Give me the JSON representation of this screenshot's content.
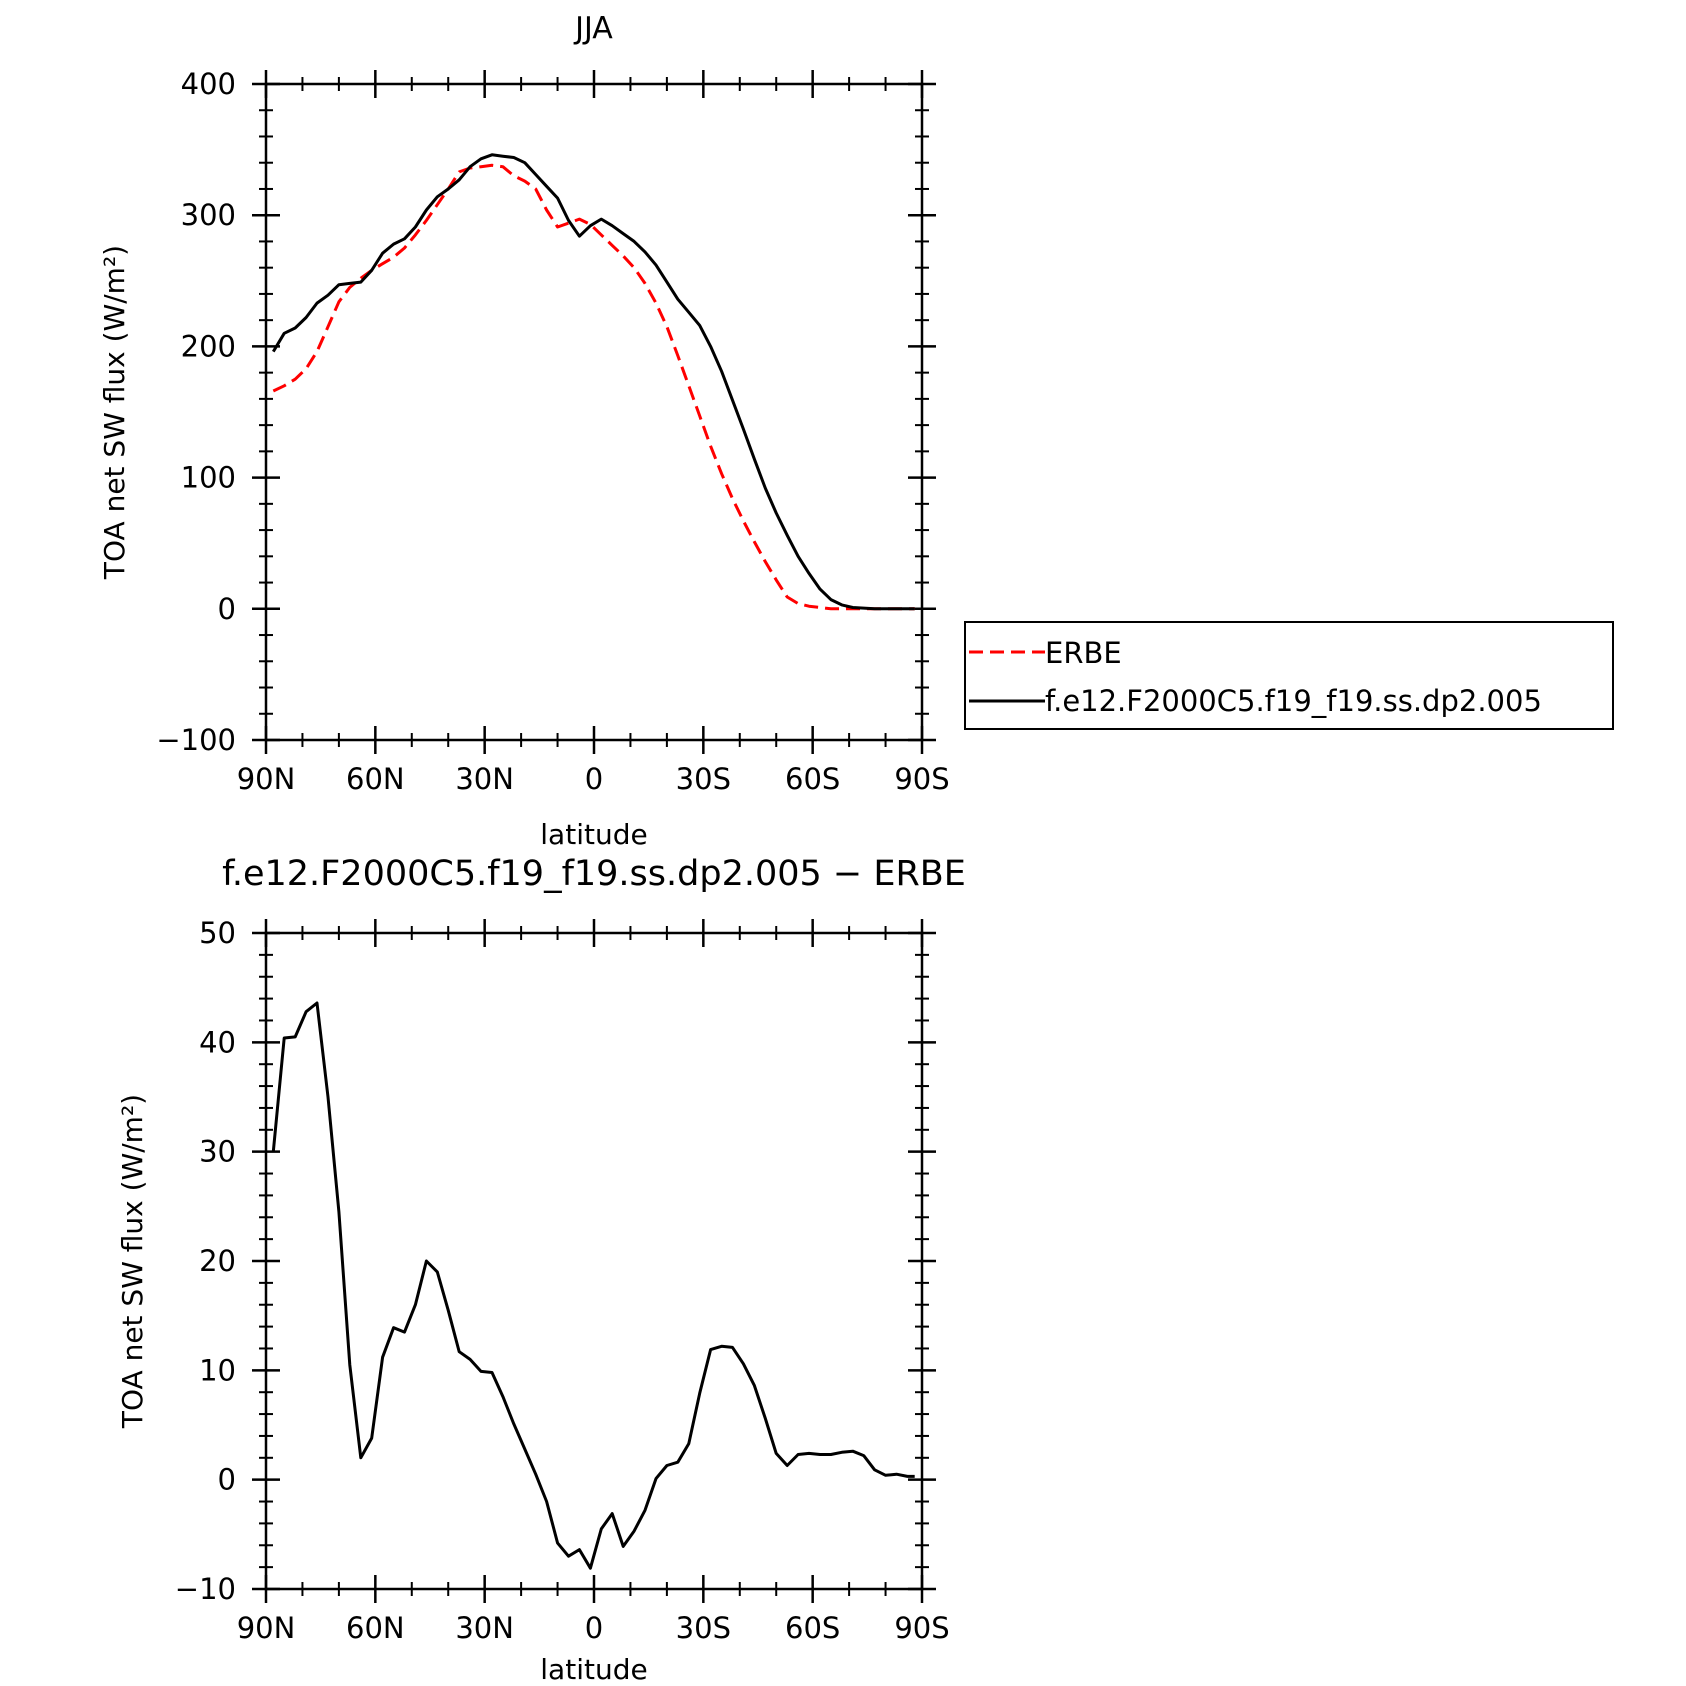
{
  "figure": {
    "background": "#ffffff",
    "axis_color": "#000000"
  },
  "chart_data": [
    {
      "type": "line",
      "title": "JJA",
      "xlabel": "latitude",
      "ylabel": "TOA net SW flux (W/m²)",
      "xlim": [
        -90,
        90
      ],
      "ylim": [
        -100,
        400
      ],
      "x_ticks": [
        -90,
        -60,
        -30,
        0,
        30,
        60,
        90
      ],
      "x_tick_labels": [
        "90N",
        "60N",
        "30N",
        "0",
        "30S",
        "60S",
        "90S"
      ],
      "y_ticks": [
        -100,
        0,
        100,
        200,
        300,
        400
      ],
      "y_tick_labels": [
        "−100",
        "0",
        "100",
        "200",
        "300",
        "400"
      ],
      "legend": {
        "placement": "right",
        "entries": [
          "ERBE",
          "f.e12.F2000C5.f19_f19.ss.dp2.005"
        ]
      },
      "series": [
        {
          "name": "ERBE",
          "color": "#ff0000",
          "dash": "dashed",
          "x": [
            -88,
            -85,
            -82,
            -79,
            -76,
            -73,
            -70,
            -67,
            -64,
            -61,
            -58,
            -55,
            -52,
            -49,
            -46,
            -43,
            -40,
            -37,
            -34,
            -31,
            -28,
            -25,
            -22,
            -19,
            -16,
            -13,
            -10,
            -7,
            -4,
            -1,
            2,
            5,
            8,
            11,
            14,
            17,
            20,
            23,
            26,
            29,
            32,
            35,
            38,
            41,
            44,
            47,
            50,
            53,
            56,
            59,
            62,
            65,
            68,
            71,
            74,
            77,
            80,
            83,
            86,
            88
          ],
          "y": [
            166,
            170,
            175,
            183,
            196,
            215,
            234,
            245,
            252,
            258,
            263,
            268,
            275,
            285,
            296,
            308,
            320,
            333,
            336,
            337,
            338,
            337,
            330,
            326,
            320,
            304,
            291,
            294,
            297,
            293,
            285,
            277,
            269,
            260,
            248,
            233,
            215,
            193,
            170,
            147,
            124,
            103,
            84,
            67,
            51,
            36,
            22,
            9,
            4,
            2,
            1,
            0,
            0,
            0,
            0,
            0,
            0,
            0,
            0,
            0
          ]
        },
        {
          "name": "f.e12.F2000C5.f19_f19.ss.dp2.005",
          "color": "#000000",
          "dash": "solid",
          "x": [
            -88,
            -85,
            -82,
            -79,
            -76,
            -73,
            -70,
            -67,
            -64,
            -61,
            -58,
            -55,
            -52,
            -49,
            -46,
            -43,
            -40,
            -37,
            -34,
            -31,
            -28,
            -25,
            -22,
            -19,
            -16,
            -13,
            -10,
            -7,
            -4,
            -1,
            2,
            5,
            8,
            11,
            14,
            17,
            20,
            23,
            26,
            29,
            32,
            35,
            38,
            41,
            44,
            47,
            50,
            53,
            56,
            59,
            62,
            65,
            68,
            71,
            74,
            77,
            80,
            83,
            86,
            88
          ],
          "y": [
            196,
            210,
            214,
            222,
            233,
            239,
            247,
            248,
            249,
            258,
            271,
            278,
            282,
            291,
            304,
            314,
            320,
            327,
            337,
            343,
            346,
            345,
            344,
            340,
            331,
            322,
            313,
            296,
            284,
            292,
            297,
            292,
            286,
            280,
            272,
            262,
            249,
            236,
            226,
            216,
            200,
            181,
            159,
            137,
            114,
            92,
            73,
            56,
            40,
            27,
            15,
            7,
            3,
            1,
            0.5,
            0,
            0,
            0,
            0,
            0
          ]
        }
      ]
    },
    {
      "type": "line",
      "title": "f.e12.F2000C5.f19_f19.ss.dp2.005 − ERBE",
      "xlabel": "latitude",
      "ylabel": "TOA net SW flux (W/m²)",
      "xlim": [
        -90,
        90
      ],
      "ylim": [
        -10,
        50
      ],
      "x_ticks": [
        -90,
        -60,
        -30,
        0,
        30,
        60,
        90
      ],
      "x_tick_labels": [
        "90N",
        "60N",
        "30N",
        "0",
        "30S",
        "60S",
        "90S"
      ],
      "y_ticks": [
        -10,
        0,
        10,
        20,
        30,
        40,
        50
      ],
      "y_tick_labels": [
        "−10",
        "0",
        "10",
        "20",
        "30",
        "40",
        "50"
      ],
      "series": [
        {
          "color": "#000000",
          "dash": "solid",
          "x": [
            -88,
            -85,
            -82,
            -79,
            -76,
            -73,
            -70,
            -67,
            -64,
            -61,
            -58,
            -55,
            -52,
            -49,
            -46,
            -43,
            -40,
            -37,
            -34,
            -31,
            -28,
            -25,
            -22,
            -19,
            -16,
            -13,
            -10,
            -7,
            -4,
            -1,
            2,
            5,
            8,
            11,
            14,
            17,
            20,
            23,
            26,
            29,
            32,
            35,
            38,
            41,
            44,
            47,
            50,
            53,
            56,
            59,
            62,
            65,
            68,
            71,
            74,
            77,
            80,
            83,
            86,
            88
          ],
          "y": [
            30,
            40.4,
            40.5,
            42.8,
            43.6,
            35,
            24.5,
            10.5,
            2,
            3.8,
            11.2,
            13.9,
            13.5,
            16,
            20,
            19,
            15.5,
            11.7,
            11,
            9.9,
            9.8,
            7.6,
            5.1,
            2.8,
            0.5,
            -2,
            -5.8,
            -7,
            -6.4,
            -8.1,
            -4.5,
            -3.1,
            -6.1,
            -4.7,
            -2.8,
            0.1,
            1.3,
            1.6,
            3.3,
            7.9,
            11.9,
            12.2,
            12.1,
            10.6,
            8.6,
            5.6,
            2.4,
            1.3,
            2.3,
            2.4,
            2.3,
            2.3,
            2.5,
            2.6,
            2.2,
            0.9,
            0.4,
            0.5,
            0.3,
            0.3
          ]
        }
      ]
    }
  ]
}
